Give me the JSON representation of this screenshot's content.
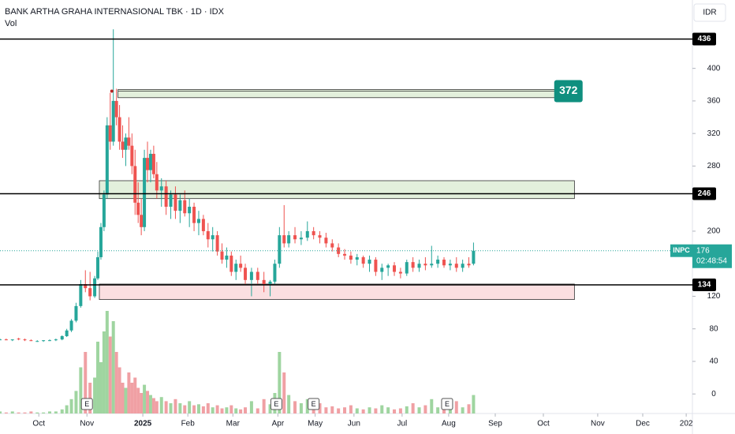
{
  "chart_data": {
    "type": "candlestick",
    "title": "BANK ARTHA GRAHA INTERNASIONAL TBK · 1D · IDX",
    "subtitle": "Vol",
    "currency": "IDR",
    "ticker": "INPC",
    "countdown": "02:48:54",
    "up_color": "#26a69a",
    "down_color": "#ef5350",
    "vol_up_color": "#9fd5a0",
    "vol_down_color": "#f0a0a4",
    "x": [
      0,
      4,
      8,
      12,
      16,
      20,
      24,
      28,
      32,
      36,
      40,
      43,
      46,
      49,
      52,
      55,
      58,
      61,
      63,
      65,
      67,
      69,
      71,
      73,
      75,
      77,
      79,
      81,
      83,
      85,
      87,
      89,
      91,
      93,
      95,
      97,
      99,
      101,
      104,
      107,
      110,
      113,
      116,
      119,
      122,
      125,
      128,
      131,
      134,
      137,
      140,
      143,
      146,
      149,
      152,
      155,
      158,
      162,
      166,
      170,
      174,
      177,
      180,
      183,
      186,
      190,
      194,
      198,
      202,
      206,
      210,
      214,
      218,
      222,
      226,
      230,
      234,
      238,
      242,
      246,
      250,
      254,
      258,
      262,
      266,
      270,
      274,
      278,
      282,
      286,
      290,
      294,
      298,
      302,
      305
    ],
    "open": [
      67,
      67,
      66,
      68,
      67,
      66,
      65,
      65,
      66,
      66,
      67,
      71,
      78,
      90,
      108,
      135,
      130,
      120,
      142,
      168,
      205,
      245,
      330,
      310,
      360,
      340,
      310,
      300,
      315,
      305,
      280,
      235,
      220,
      205,
      290,
      275,
      295,
      270,
      250,
      255,
      230,
      245,
      225,
      238,
      222,
      230,
      210,
      215,
      200,
      190,
      195,
      175,
      165,
      170,
      150,
      160,
      155,
      140,
      150,
      140,
      135,
      138,
      160,
      195,
      185,
      195,
      190,
      192,
      200,
      195,
      192,
      185,
      180,
      172,
      170,
      165,
      168,
      160,
      165,
      150,
      155,
      158,
      150,
      148,
      162,
      155,
      160,
      158,
      160,
      165,
      158,
      160,
      155,
      160,
      160
    ],
    "high": [
      68,
      68,
      67,
      69,
      68,
      67,
      66,
      66,
      67,
      68,
      72,
      80,
      92,
      112,
      140,
      152,
      150,
      145,
      175,
      210,
      250,
      340,
      370,
      448,
      375,
      355,
      330,
      320,
      340,
      320,
      300,
      260,
      240,
      300,
      310,
      300,
      305,
      285,
      265,
      262,
      250,
      255,
      245,
      250,
      240,
      235,
      225,
      220,
      210,
      205,
      200,
      185,
      180,
      175,
      165,
      170,
      160,
      155,
      155,
      150,
      140,
      165,
      205,
      232,
      200,
      205,
      200,
      212,
      205,
      200,
      198,
      190,
      185,
      178,
      175,
      172,
      170,
      170,
      168,
      160,
      160,
      162,
      155,
      165,
      168,
      165,
      168,
      182,
      170,
      168,
      165,
      168,
      165,
      168,
      186
    ],
    "low": [
      66,
      66,
      65,
      66,
      65,
      65,
      64,
      64,
      65,
      65,
      66,
      70,
      76,
      88,
      106,
      125,
      115,
      118,
      140,
      165,
      200,
      240,
      300,
      305,
      330,
      300,
      290,
      280,
      300,
      270,
      220,
      210,
      195,
      200,
      260,
      260,
      265,
      240,
      230,
      220,
      215,
      215,
      210,
      218,
      205,
      200,
      195,
      195,
      180,
      175,
      170,
      160,
      155,
      145,
      140,
      150,
      135,
      120,
      135,
      125,
      120,
      135,
      155,
      180,
      180,
      185,
      183,
      188,
      190,
      185,
      180,
      175,
      168,
      165,
      160,
      158,
      155,
      150,
      145,
      140,
      145,
      145,
      142,
      145,
      150,
      150,
      152,
      155,
      155,
      155,
      152,
      150,
      150,
      155,
      158
    ],
    "close": [
      67,
      66,
      67,
      67,
      66,
      65,
      65,
      66,
      66,
      67,
      71,
      78,
      90,
      108,
      135,
      130,
      120,
      142,
      168,
      205,
      245,
      330,
      310,
      360,
      340,
      310,
      300,
      315,
      305,
      280,
      235,
      220,
      205,
      290,
      275,
      295,
      270,
      250,
      255,
      230,
      245,
      225,
      238,
      222,
      230,
      210,
      215,
      200,
      190,
      195,
      175,
      165,
      170,
      150,
      160,
      155,
      140,
      150,
      140,
      135,
      138,
      160,
      195,
      185,
      195,
      190,
      192,
      200,
      195,
      192,
      185,
      180,
      172,
      170,
      165,
      168,
      160,
      165,
      150,
      155,
      158,
      150,
      148,
      162,
      155,
      160,
      158,
      160,
      165,
      158,
      160,
      155,
      160,
      158,
      176
    ],
    "volume": [
      2,
      1,
      2,
      1,
      1,
      2,
      1,
      1,
      2,
      2,
      4,
      8,
      14,
      22,
      45,
      60,
      30,
      35,
      70,
      50,
      80,
      100,
      75,
      90,
      60,
      45,
      30,
      25,
      40,
      30,
      35,
      25,
      20,
      28,
      22,
      18,
      15,
      12,
      16,
      12,
      10,
      14,
      10,
      8,
      12,
      8,
      9,
      7,
      10,
      6,
      8,
      5,
      6,
      8,
      5,
      4,
      6,
      12,
      5,
      14,
      9,
      20,
      60,
      40,
      18,
      12,
      10,
      14,
      8,
      10,
      6,
      7,
      5,
      6,
      8,
      5,
      4,
      6,
      5,
      8,
      6,
      4,
      5,
      7,
      10,
      6,
      8,
      14,
      6,
      5,
      8,
      12,
      6,
      9,
      18
    ],
    "xlim": [
      0,
      446
    ],
    "xticks": [
      {
        "value": 25,
        "label": "Oct"
      },
      {
        "value": 56,
        "label": "Nov"
      },
      {
        "value": 92,
        "label": "2025"
      },
      {
        "value": 121,
        "label": "Feb"
      },
      {
        "value": 150,
        "label": "Mar"
      },
      {
        "value": 179,
        "label": "Apr"
      },
      {
        "value": 203,
        "label": "May"
      },
      {
        "value": 228,
        "label": "Jun"
      },
      {
        "value": 259,
        "label": "Jul"
      },
      {
        "value": 289,
        "label": "Aug"
      },
      {
        "value": 319,
        "label": "Sep"
      },
      {
        "value": 350,
        "label": "Oct"
      },
      {
        "value": 385,
        "label": "Nov"
      },
      {
        "value": 414,
        "label": "Dec"
      },
      {
        "value": 442,
        "label": "202"
      }
    ],
    "ylim": [
      -24,
      484
    ],
    "yticks": [
      0,
      40,
      80,
      120,
      200,
      280,
      320,
      360,
      400
    ],
    "levels": [
      436,
      246,
      134
    ],
    "target": 372,
    "zones": [
      {
        "low": 364,
        "high": 374,
        "x": [
          76,
          358
        ],
        "color": "#e3f0dc"
      },
      {
        "low": 240,
        "high": 262,
        "x": [
          64,
          370
        ],
        "color": "#e3f0dc"
      },
      {
        "low": 116,
        "high": 135,
        "x": [
          64,
          370
        ],
        "color": "#fbdfe1"
      }
    ],
    "earnings": {
      "label": "E",
      "x": [
        56,
        178,
        202,
        288
      ]
    },
    "signal": {
      "x": 72,
      "value": 372
    }
  }
}
